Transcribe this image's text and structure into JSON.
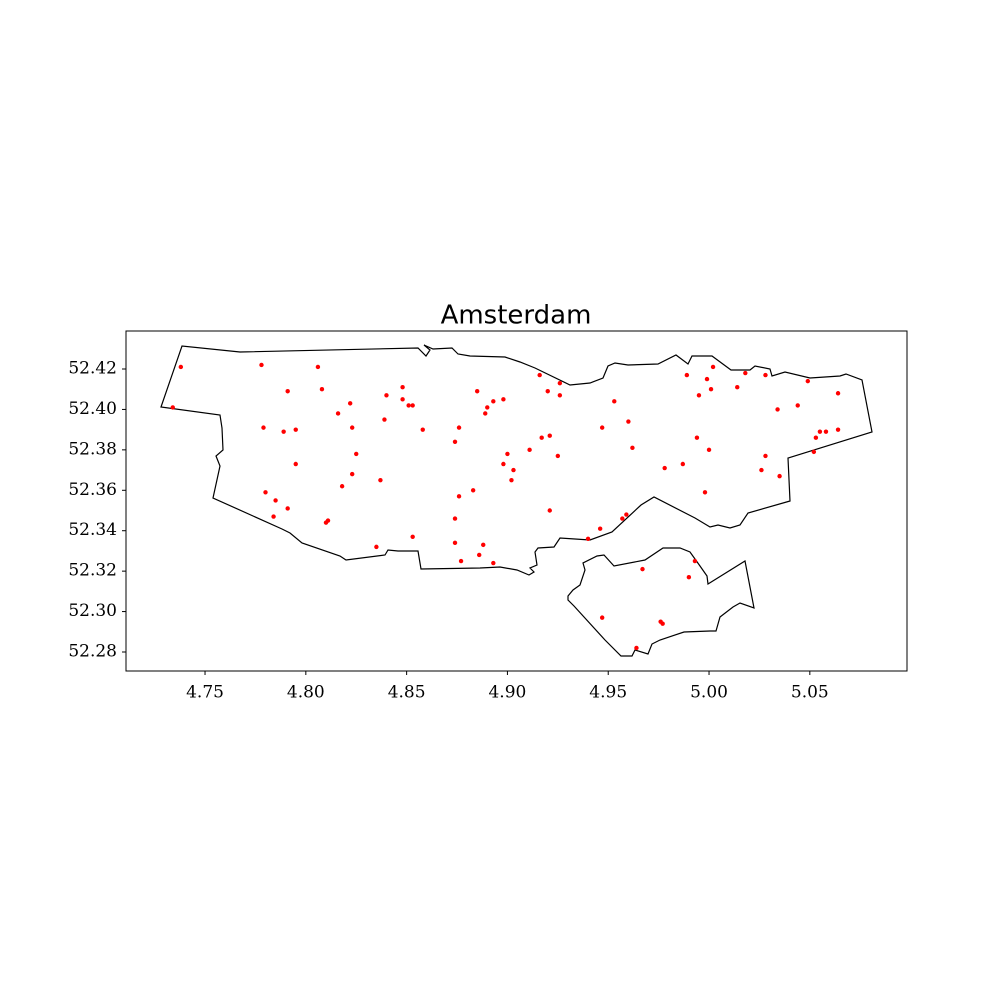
{
  "chart_data": {
    "type": "scatter",
    "title": "Amsterdam",
    "color": "#ff0000",
    "x": [
      4.738,
      4.734,
      4.778,
      4.791,
      4.779,
      4.789,
      4.795,
      4.795,
      4.78,
      4.785,
      4.791,
      4.784,
      4.806,
      4.808,
      4.816,
      4.822,
      4.823,
      4.825,
      4.823,
      4.818,
      4.811,
      4.81,
      4.84,
      4.839,
      4.848,
      4.848,
      4.851,
      4.853,
      4.858,
      4.837,
      4.835,
      4.853,
      4.876,
      4.874,
      4.876,
      4.883,
      4.874,
      4.874,
      4.877,
      4.885,
      4.893,
      4.89,
      4.889,
      4.898,
      4.888,
      4.886,
      4.893,
      4.916,
      4.92,
      4.926,
      4.926,
      4.917,
      4.921,
      4.911,
      4.9,
      4.903,
      4.898,
      4.902,
      4.925,
      4.921,
      4.94,
      4.946,
      4.953,
      4.947,
      4.96,
      4.962,
      4.959,
      4.957,
      4.978,
      4.987,
      4.989,
      4.999,
      5.002,
      4.995,
      5.001,
      4.994,
      5.0,
      4.998,
      5.018,
      5.014,
      5.028,
      5.049,
      5.034,
      5.044,
      5.028,
      5.026,
      5.035,
      5.064,
      5.055,
      5.058,
      5.064,
      5.053,
      5.052,
      4.967,
      4.993,
      4.99,
      4.947,
      4.976,
      4.977,
      4.964
    ],
    "y": [
      52.421,
      52.401,
      52.422,
      52.409,
      52.391,
      52.389,
      52.39,
      52.373,
      52.359,
      52.355,
      52.351,
      52.347,
      52.421,
      52.41,
      52.398,
      52.403,
      52.391,
      52.378,
      52.368,
      52.362,
      52.345,
      52.344,
      52.407,
      52.395,
      52.411,
      52.405,
      52.402,
      52.402,
      52.39,
      52.365,
      52.332,
      52.337,
      52.391,
      52.384,
      52.357,
      52.36,
      52.346,
      52.334,
      52.325,
      52.409,
      52.404,
      52.401,
      52.398,
      52.405,
      52.333,
      52.328,
      52.324,
      52.417,
      52.409,
      52.413,
      52.407,
      52.386,
      52.387,
      52.38,
      52.378,
      52.37,
      52.373,
      52.365,
      52.377,
      52.35,
      52.336,
      52.341,
      52.404,
      52.391,
      52.394,
      52.381,
      52.348,
      52.346,
      52.371,
      52.373,
      52.417,
      52.415,
      52.421,
      52.407,
      52.41,
      52.386,
      52.38,
      52.359,
      52.418,
      52.411,
      52.417,
      52.414,
      52.4,
      52.402,
      52.377,
      52.37,
      52.367,
      52.408,
      52.389,
      52.389,
      52.39,
      52.386,
      52.379,
      52.321,
      52.325,
      52.317,
      52.297,
      52.295,
      52.294,
      52.282
    ],
    "xlim": [
      4.7108,
      5.0982
    ],
    "ylim": [
      52.2706,
      52.4388
    ],
    "xticks": [
      4.75,
      {
        "value": 4.8,
        "label": "4.80"
      },
      4.85,
      {
        "value": 4.9,
        "label": "4.90"
      },
      4.95,
      {
        "value": 5.0,
        "label": "5.00"
      },
      5.05
    ],
    "yticks": [
      52.28,
      {
        "value": 52.3,
        "label": "52.30"
      },
      52.32,
      52.34,
      52.36,
      52.38,
      {
        "value": 52.4,
        "label": "52.40"
      },
      52.42
    ]
  }
}
